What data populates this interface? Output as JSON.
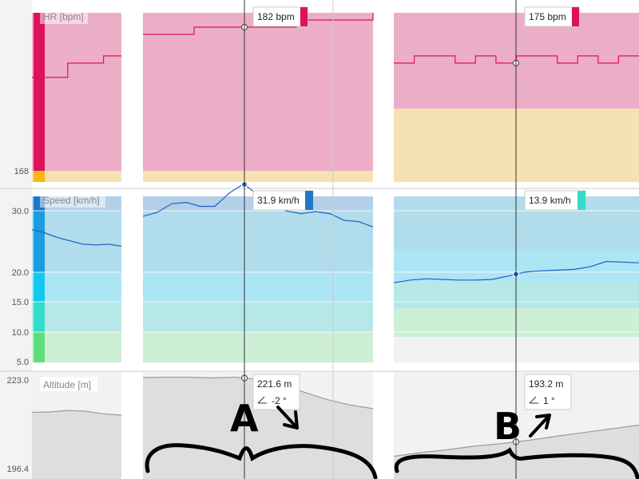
{
  "chart_data": {
    "type": "line",
    "ticks": {
      "hr": [
        "168"
      ],
      "speed": [
        "30.0",
        "20.0",
        "15.0",
        "10.0",
        "5.0"
      ],
      "altitude": [
        "223.0",
        "196.4"
      ]
    },
    "axes": {
      "hr": {
        "label": "HR [bpm]",
        "ylim": [
          168,
          190
        ]
      },
      "speed": {
        "label": "Speed [km/h]",
        "ylim": [
          5,
          30
        ]
      },
      "altitude": {
        "label": "Altitude [m]",
        "ylim": [
          196.4,
          223.0
        ]
      }
    },
    "panels": [
      {
        "id": "left",
        "hr": [
          181,
          181,
          183,
          183,
          184,
          184
        ],
        "speed": [
          25.0,
          24.5,
          23.8,
          23.3,
          22.8,
          22.7,
          22.8,
          22.5
        ],
        "altitude": [
          212.0,
          212.1,
          212.5,
          212.3,
          211.6,
          211.2
        ]
      },
      {
        "id": "A",
        "hr": [
          187,
          187,
          188,
          188,
          188,
          188,
          189,
          189,
          189,
          190
        ],
        "speed": [
          27.0,
          27.6,
          28.9,
          29.1,
          28.5,
          28.5,
          30.5,
          31.9,
          30.2,
          28.8,
          27.8,
          27.4,
          27.7,
          27.4,
          26.4,
          26.2,
          25.4
        ],
        "altitude": [
          221.5,
          221.6,
          221.6,
          221.4,
          221.6,
          221.0,
          219.5,
          217.5,
          215.5,
          214.0,
          213.0
        ],
        "tooltip_hr": "182 bpm",
        "tooltip_speed": "31.9 km/h",
        "tooltip_alt": "221.6 m",
        "tooltip_slope": "-2 °",
        "note": "A"
      },
      {
        "id": "B",
        "hr": [
          183,
          184,
          184,
          183,
          184,
          183,
          184,
          184,
          183,
          184,
          183,
          184,
          184
        ],
        "speed": [
          17.0,
          17.4,
          17.6,
          17.5,
          17.4,
          17.4,
          17.5,
          18.0,
          18.6,
          18.8,
          18.9,
          19.0,
          19.4,
          20.2,
          20.1,
          20.0
        ],
        "altitude": [
          200.0,
          201.0,
          201.8,
          202.8,
          203.5,
          204.4,
          205.5,
          206.5,
          207.5,
          208.5
        ],
        "tooltip_hr": "175 bpm",
        "tooltip_speed": "13.9 km/h",
        "tooltip_alt": "193.2 m",
        "tooltip_slope": "1 °",
        "note": "B"
      }
    ]
  }
}
